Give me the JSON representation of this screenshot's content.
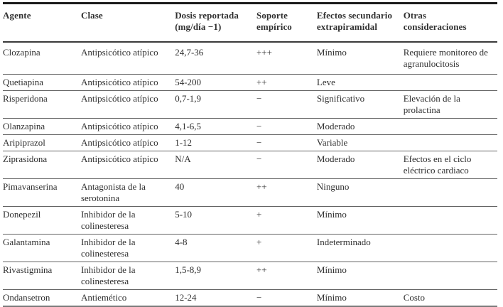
{
  "page": {
    "background_color": "#ffffff",
    "text_color": "#2f2f2f",
    "border_color_heavy": "#1c1c1c",
    "border_color_light": "#636363"
  },
  "table": {
    "headers": {
      "agente": "Agente",
      "clase": "Clase",
      "dosis": "Dosis reportada (mg/día −1)",
      "soporte": "Soporte empírico",
      "efectos": "Efectos secundario extrapiramidal",
      "otras": "Otras consideraciones"
    },
    "rows": [
      {
        "agente": "Clozapina",
        "clase": "Antipsicótico atípico",
        "dosis": "24,7-36",
        "soporte": "+++",
        "efectos": "Mínimo",
        "otras": "Requiere monitoreo de agranulocitosis"
      },
      {
        "agente": "Quetiapina",
        "clase": "Antipsicótico atípico",
        "dosis": "54-200",
        "soporte": "++",
        "efectos": "Leve",
        "otras": ""
      },
      {
        "agente": "Risperidona",
        "clase": "Antipsicótico atípico",
        "dosis": "0,7-1,9",
        "soporte": "−",
        "efectos": "Significativo",
        "otras": "Elevación de la prolactina"
      },
      {
        "agente": "Olanzapina",
        "clase": "Antipsicótico atípico",
        "dosis": "4,1-6,5",
        "soporte": "−",
        "efectos": "Moderado",
        "otras": ""
      },
      {
        "agente": "Aripiprazol",
        "clase": "Antipsicótico atípico",
        "dosis": "1-12",
        "soporte": "−",
        "efectos": "Variable",
        "otras": ""
      },
      {
        "agente": "Ziprasidona",
        "clase": "Antipsicótico atípico",
        "dosis": "N/A",
        "soporte": "−",
        "efectos": "Moderado",
        "otras": "Efectos en el ciclo eléctrico cardiaco"
      },
      {
        "agente": "Pimavanserina",
        "clase": "Antagonista de la serotonina",
        "dosis": "40",
        "soporte": "++",
        "efectos": "Ninguno",
        "otras": ""
      },
      {
        "agente": "Donepezil",
        "clase": "Inhibidor de la colinesteresa",
        "dosis": "5-10",
        "soporte": "+",
        "efectos": "Mínimo",
        "otras": ""
      },
      {
        "agente": "Galantamina",
        "clase": "Inhibidor de la colinesteresa",
        "dosis": "4-8",
        "soporte": "+",
        "efectos": "Indeterminado",
        "otras": ""
      },
      {
        "agente": "Rivastigmina",
        "clase": "Inhibidor de la colinesteresa",
        "dosis": "1,5-8,9",
        "soporte": "++",
        "efectos": "Mínimo",
        "otras": ""
      },
      {
        "agente": "Ondansetron",
        "clase": "Antiemético",
        "dosis": "12-24",
        "soporte": "−",
        "efectos": "Mínimo",
        "otras": "Costo"
      }
    ]
  }
}
